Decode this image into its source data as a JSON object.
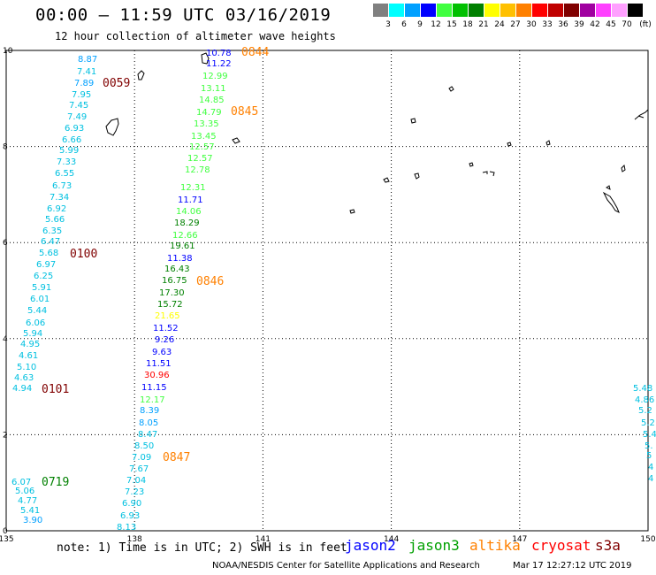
{
  "header": {
    "title": "00:00 — 11:59 UTC 03/16/2019",
    "subtitle": "12 hour collection of altimeter wave heights"
  },
  "legend": {
    "unit": "(ft)",
    "bins": [
      {
        "label": "3",
        "color": "#808080"
      },
      {
        "label": "6",
        "color": "#00ffff"
      },
      {
        "label": "9",
        "color": "#00a0ff"
      },
      {
        "label": "12",
        "color": "#0000ff"
      },
      {
        "label": "15",
        "color": "#40ff40"
      },
      {
        "label": "18",
        "color": "#00c000"
      },
      {
        "label": "21",
        "color": "#008000"
      },
      {
        "label": "24",
        "color": "#ffff00"
      },
      {
        "label": "27",
        "color": "#ffc000"
      },
      {
        "label": "30",
        "color": "#ff8000"
      },
      {
        "label": "33",
        "color": "#ff0000"
      },
      {
        "label": "36",
        "color": "#c00000"
      },
      {
        "label": "39",
        "color": "#800000"
      },
      {
        "label": "42",
        "color": "#a000a0"
      },
      {
        "label": "45",
        "color": "#ff40ff"
      },
      {
        "label": "70",
        "color": "#ffa0ff"
      },
      {
        "label": "",
        "color": "#000000"
      }
    ]
  },
  "axes": {
    "lon_ticks": [
      "135",
      "138",
      "141",
      "144",
      "147",
      "150"
    ],
    "lat_ticks": [
      "0",
      "2",
      "4",
      "6",
      "8",
      "10"
    ]
  },
  "tracks": [
    {
      "values": [
        "8.87",
        "7.41",
        "7.89",
        "7.95",
        "7.45",
        "7.49",
        "6.93",
        "6.66",
        "5.99",
        "7.33",
        "6.55",
        "6.73",
        "7.34",
        "6.92",
        "5.66",
        "6.35",
        "6.47",
        "5.68",
        "6.97",
        "6.25",
        "5.91",
        "6.01",
        "5.44",
        "6.06",
        "5.94",
        "4.95",
        "4.61",
        "5.10",
        "4.63",
        "4.94"
      ],
      "colors": [
        "#00a0ff",
        "#00c0e0",
        "#00a0ff",
        "#00c0e0",
        "#00c0e0",
        "#00c0e0",
        "#00c0e0",
        "#00c0e0",
        "#00c0e0",
        "#00c0e0",
        "#00c0e0",
        "#00c0e0",
        "#00c0e0",
        "#00c0e0",
        "#00c0e0",
        "#00c0e0",
        "#00c0e0",
        "#00c0e0",
        "#00c0e0",
        "#00c0e0",
        "#00c0e0",
        "#00c0e0",
        "#00c0e0",
        "#00c0e0",
        "#00c0e0",
        "#00c0e0",
        "#00c0e0",
        "#00c0e0",
        "#00c0e0",
        "#00c0e0"
      ]
    },
    {
      "values": [
        "6.07",
        "5.06",
        "4.77",
        "5.41",
        "3.90"
      ],
      "colors": [
        "#00c0e0",
        "#00c0e0",
        "#00c0e0",
        "#00c0e0",
        "#00a0ff"
      ]
    },
    {
      "values": [
        "10.78",
        "11.22",
        "12.99",
        "13.11",
        "14.85",
        "14.79",
        "13.35",
        "13.45",
        "12.57",
        "12.57",
        "12.78",
        "12.31",
        "11.71",
        "14.06",
        "18.29",
        "12.66",
        "19.61",
        "11.38",
        "16.43",
        "16.75",
        "17.30",
        "15.72",
        "21.65",
        "11.52",
        "9.26",
        "9.63",
        "11.51",
        "30.96",
        "11.15",
        "12.17",
        "8.39",
        "8.05",
        "8.47",
        "8.50",
        "7.09",
        "7.67",
        "7.04",
        "7.23",
        "6.90",
        "6.93",
        "8.13"
      ],
      "colors": [
        "#0000ff",
        "#0000ff",
        "#40ff40",
        "#40ff40",
        "#40ff40",
        "#40ff40",
        "#40ff40",
        "#40ff40",
        "#40ff40",
        "#40ff40",
        "#40ff40",
        "#40ff40",
        "#0000ff",
        "#40ff40",
        "#008000",
        "#40ff40",
        "#008000",
        "#0000ff",
        "#008000",
        "#008000",
        "#008000",
        "#008000",
        "#ffff00",
        "#0000ff",
        "#0000ff",
        "#0000ff",
        "#0000ff",
        "#ff0000",
        "#0000ff",
        "#40ff40",
        "#00a0ff",
        "#00a0ff",
        "#00c0e0",
        "#00c0e0",
        "#00c0e0",
        "#00c0e0",
        "#00c0e0",
        "#00c0e0",
        "#00c0e0",
        "#00c0e0",
        "#00c0e0"
      ]
    },
    {
      "values": [
        "5.48",
        "4.86",
        "5.2",
        "5.2",
        "5.4",
        "5.",
        "5",
        "4",
        "4"
      ],
      "colors": [
        "#00c0e0",
        "#00c0e0",
        "#00c0e0",
        "#00c0e0",
        "#00c0e0",
        "#00c0e0",
        "#00c0e0",
        "#00c0e0",
        "#00c0e0"
      ]
    }
  ],
  "time_labels": [
    {
      "text": "0844",
      "color": "#ff8000"
    },
    {
      "text": "0059",
      "color": "#800000"
    },
    {
      "text": "0845",
      "color": "#ff8000"
    },
    {
      "text": "0100",
      "color": "#800000"
    },
    {
      "text": "0846",
      "color": "#ff8000"
    },
    {
      "text": "0101",
      "color": "#800000"
    },
    {
      "text": "0847",
      "color": "#ff8000"
    },
    {
      "text": "0719",
      "color": "#008000"
    }
  ],
  "footer": {
    "note": "note: 1) Time is in UTC; 2) SWH is in feet",
    "satellites": [
      {
        "name": "jason2",
        "color": "#0000ff"
      },
      {
        "name": "jason3",
        "color": "#00a000"
      },
      {
        "name": "altika",
        "color": "#ff8000"
      },
      {
        "name": "cryosat",
        "color": "#ff0000"
      },
      {
        "name": "s3a",
        "color": "#800000"
      }
    ],
    "credit": "NOAA/NESDIS Center for Satellite Applications and Research",
    "timestamp": "Mar 17 12:27:12 UTC 2019"
  }
}
